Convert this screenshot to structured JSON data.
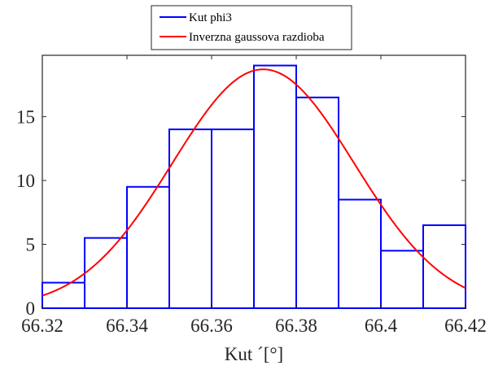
{
  "chart_data": {
    "type": "bar",
    "bins": [
      {
        "from": 66.32,
        "to": 66.33,
        "value": 2
      },
      {
        "from": 66.33,
        "to": 66.34,
        "value": 5.5
      },
      {
        "from": 66.34,
        "to": 66.35,
        "value": 9.5
      },
      {
        "from": 66.35,
        "to": 66.36,
        "value": 14
      },
      {
        "from": 66.36,
        "to": 66.37,
        "value": 14
      },
      {
        "from": 66.37,
        "to": 66.38,
        "value": 19
      },
      {
        "from": 66.38,
        "to": 66.39,
        "value": 16.5
      },
      {
        "from": 66.39,
        "to": 66.4,
        "value": 8.5
      },
      {
        "from": 66.4,
        "to": 66.41,
        "value": 4.5
      },
      {
        "from": 66.41,
        "to": 66.42,
        "value": 6.5
      }
    ],
    "curve": {
      "mean": 66.3722,
      "sd": 0.0215,
      "peak": 18.7
    },
    "series": [
      {
        "name": "Kut phi3",
        "type": "histogram",
        "color": "#0000ff"
      },
      {
        "name": "Inverzna gaussova razdioba",
        "type": "line",
        "color": "#ff0000"
      }
    ],
    "xlim": [
      66.32,
      66.42
    ],
    "ylim": [
      0,
      19.8
    ],
    "xticks": [
      66.32,
      66.34,
      66.36,
      66.38,
      66.4,
      66.42
    ],
    "xtick_labels": [
      "66.32",
      "66.34",
      "66.36",
      "66.38",
      "66.4",
      "66.42"
    ],
    "yticks": [
      0,
      5,
      10,
      15
    ],
    "ytick_labels": [
      "0",
      "5",
      "10",
      "15"
    ],
    "xlabel": "Kut ´[°]",
    "ylabel": "",
    "title": "",
    "legend_position": "top-center-outside",
    "grid": false
  }
}
